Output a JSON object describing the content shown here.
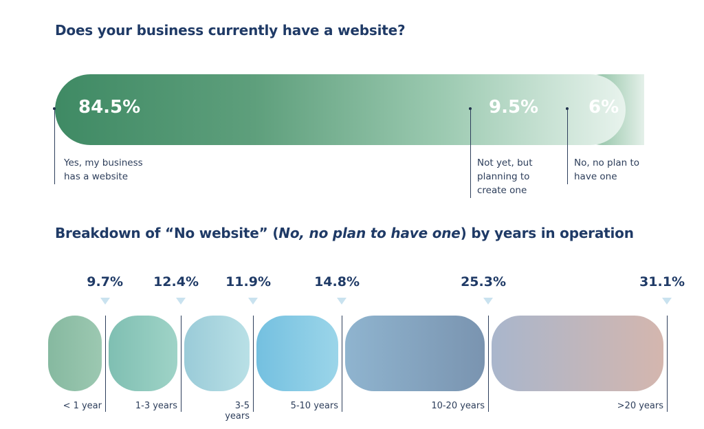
{
  "chart_data": [
    {
      "type": "bar",
      "title": "Does your business currently have a website?",
      "categories": [
        "Yes, my business has a website",
        "Not yet, but planning to create one",
        "No, no plan to have one"
      ],
      "values": [
        84.5,
        9.5,
        6
      ],
      "value_labels": [
        "84.5%",
        "9.5%",
        "6%"
      ],
      "label_lines": [
        [
          "Yes, my business",
          "has a website"
        ],
        [
          "Not yet, but",
          "planning to",
          "create one"
        ],
        [
          "No, no plan to",
          "have one"
        ]
      ],
      "unit": "%",
      "colors": [
        "#3f8a64",
        "#8ec5a8",
        "#b9dcc8"
      ]
    },
    {
      "type": "bar",
      "title_parts": [
        "Breakdown of “No website” (",
        "No, no plan to have one",
        ") by years in operation"
      ],
      "categories": [
        "< 1 year",
        "1-3 years",
        "3-5 years",
        "5-10 years",
        "10-20 years",
        ">20 years"
      ],
      "category_lines": [
        [
          "< 1 year"
        ],
        [
          "1-3 years"
        ],
        [
          "3-5",
          "years"
        ],
        [
          "5-10 years"
        ],
        [
          "10-20 years"
        ],
        [
          ">20 years"
        ]
      ],
      "values": [
        9.7,
        12.4,
        11.9,
        14.8,
        25.3,
        31.1
      ],
      "value_labels": [
        "9.7%",
        "12.4%",
        "11.9%",
        "14.8%",
        "25.3%",
        "31.1%"
      ],
      "unit": "%",
      "colors": [
        "#8fbfa6",
        "#8cc7bc",
        "#a6d3dc",
        "#83c8e2",
        "#8ba8c2",
        "#c7b2b6"
      ]
    }
  ]
}
